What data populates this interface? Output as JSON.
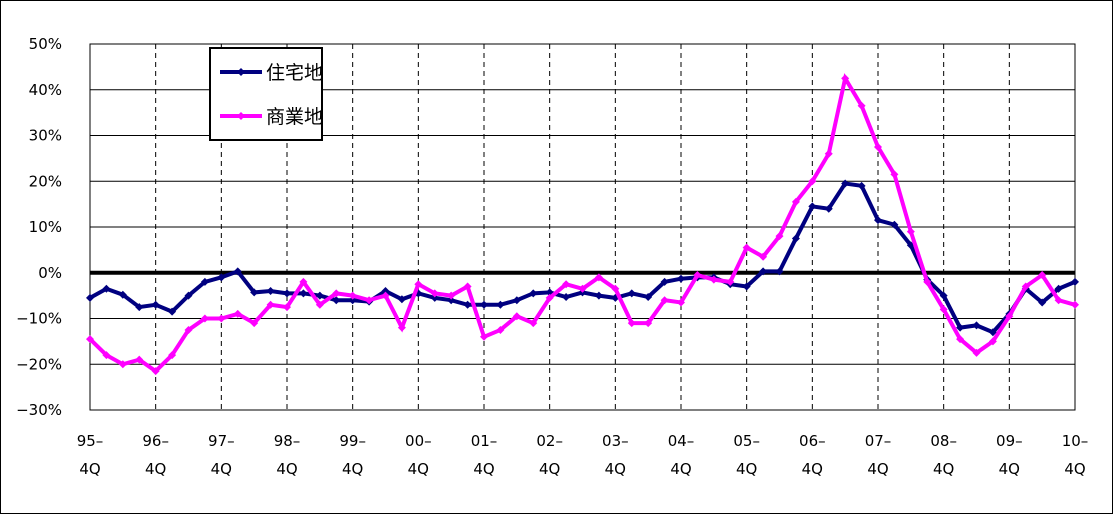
{
  "chart_data": {
    "type": "line",
    "categories": [
      "95–\n4Q",
      null,
      null,
      null,
      "96–\n4Q",
      null,
      null,
      null,
      "97–\n4Q",
      null,
      null,
      null,
      "98–\n4Q",
      null,
      null,
      null,
      "99–\n4Q",
      null,
      null,
      null,
      "00–\n4Q",
      null,
      null,
      null,
      "01–\n4Q",
      null,
      null,
      null,
      "02–\n4Q",
      null,
      null,
      null,
      "03–\n4Q",
      null,
      null,
      null,
      "04–\n4Q",
      null,
      null,
      null,
      "05–\n4Q",
      null,
      null,
      null,
      "06–\n4Q",
      null,
      null,
      null,
      "07–\n4Q",
      null,
      null,
      null,
      "08–\n4Q",
      null,
      null,
      null,
      "09–\n4Q",
      null,
      null,
      null,
      "10–\n4Q"
    ],
    "series": [
      {
        "name": "住宅地",
        "color": "#000080",
        "values": [
          -5.5,
          -3.5,
          -4.8,
          -7.5,
          -7,
          -8.5,
          -5,
          -2,
          -1,
          0.3,
          -4.3,
          -4,
          -4.5,
          -4.5,
          -5,
          -6,
          -6,
          -6.3,
          -4,
          -5.8,
          -4.5,
          -5.5,
          -6,
          -7,
          -7,
          -7,
          -6,
          -4.5,
          -4.3,
          -5.3,
          -4.3,
          -5,
          -5.5,
          -4.5,
          -5.3,
          -2,
          -1.3,
          -1,
          -1,
          -2.5,
          -3,
          0.3,
          0.3,
          7.5,
          14.5,
          14,
          19.5,
          19,
          11.5,
          10.5,
          6,
          -1.5,
          -5,
          -12,
          -11.5,
          -13,
          -9,
          -3.5,
          -6.5,
          -3.5,
          -2
        ]
      },
      {
        "name": "商業地",
        "color": "#ff00ff",
        "values": [
          -14.5,
          -18,
          -20,
          -19,
          -21.5,
          -18,
          -12.5,
          -10,
          -10,
          -9,
          -11,
          -7,
          -7.5,
          -2,
          -7,
          -4.5,
          -5,
          -6,
          -5,
          -12,
          -2.5,
          -4.5,
          -5,
          -3,
          -14,
          -12.5,
          -9.5,
          -11,
          -5.5,
          -2.5,
          -3.5,
          -1,
          -3.5,
          -11,
          -11,
          -6,
          -6.5,
          -0.5,
          -1.5,
          -2,
          5.5,
          3.5,
          8,
          15.5,
          20,
          26,
          42.5,
          36.5,
          27.5,
          21.5,
          9,
          -2,
          -8,
          -14.5,
          -17.5,
          -15,
          -9.5,
          -3,
          -0.5,
          -6,
          -7
        ]
      }
    ],
    "ylim": [
      -30,
      50
    ],
    "yticks": [
      {
        "value": -30,
        "label": "−30%"
      },
      {
        "value": -20,
        "label": "−20%"
      },
      {
        "value": -10,
        "label": "−10%"
      },
      {
        "value": 0,
        "label": "0%"
      },
      {
        "value": 10,
        "label": "10%"
      },
      {
        "value": 20,
        "label": "20%"
      },
      {
        "value": 30,
        "label": "30%"
      },
      {
        "value": 40,
        "label": "40%"
      },
      {
        "value": 50,
        "label": "50%"
      }
    ],
    "grid": true,
    "legend": "upper left"
  }
}
